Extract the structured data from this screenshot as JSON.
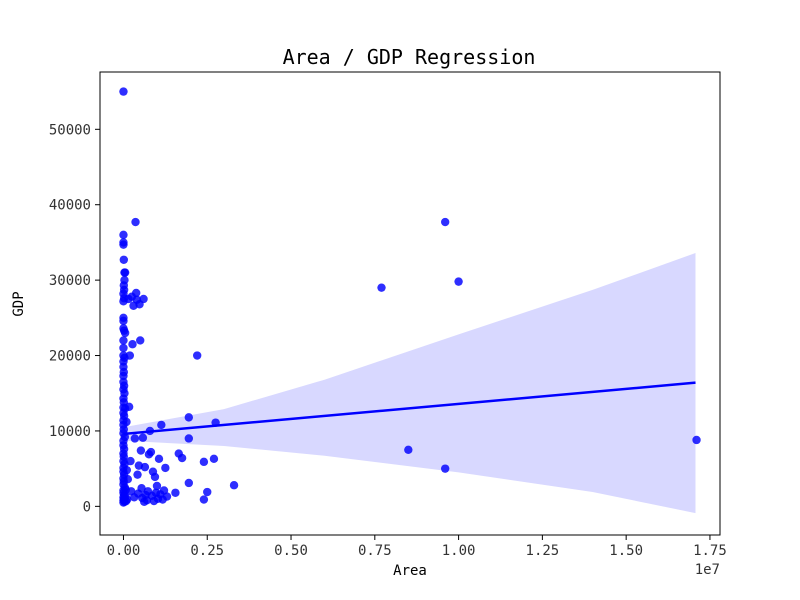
{
  "chart_data": {
    "type": "scatter",
    "title": "Area / GDP Regression",
    "xlabel": "Area",
    "ylabel": "GDP",
    "x_offset_label": "1e7",
    "xlim": [
      -0.07,
      1.78
    ],
    "ylim": [
      -3800,
      57600
    ],
    "x_ticks": [
      0.0,
      0.25,
      0.5,
      0.75,
      1.0,
      1.25,
      1.5,
      1.75
    ],
    "x_tick_labels": [
      "0.00",
      "0.25",
      "0.50",
      "0.75",
      "1.00",
      "1.25",
      "1.50",
      "1.75"
    ],
    "y_ticks": [
      0,
      10000,
      20000,
      30000,
      40000,
      50000
    ],
    "y_tick_labels": [
      "0",
      "10000",
      "20000",
      "30000",
      "40000",
      "50000"
    ],
    "grid": false,
    "colors": {
      "points": "#0000ff",
      "regression_line": "#0000ff",
      "confidence_band": "#d8d8ff"
    },
    "regression_line": {
      "x": [
        0.0,
        1.707
      ],
      "y": [
        9600,
        16400
      ]
    },
    "confidence_band": {
      "x": [
        0.0,
        0.3,
        0.6,
        1.0,
        1.4,
        1.707
      ],
      "lower": [
        8700,
        8000,
        6700,
        4500,
        1900,
        -900
      ],
      "upper": [
        10500,
        12900,
        16800,
        22800,
        28700,
        33600
      ]
    },
    "points": [
      {
        "x": 0.0,
        "y": 55000
      },
      {
        "x": 0.0,
        "y": 36000
      },
      {
        "x": 0.0,
        "y": 35000
      },
      {
        "x": 0.0,
        "y": 34700
      },
      {
        "x": 0.001,
        "y": 32700
      },
      {
        "x": 0.003,
        "y": 31000
      },
      {
        "x": 0.005,
        "y": 31000
      },
      {
        "x": 0.003,
        "y": 30000
      },
      {
        "x": 0.001,
        "y": 29300
      },
      {
        "x": 0.002,
        "y": 28700
      },
      {
        "x": 0.0,
        "y": 28200
      },
      {
        "x": 0.0,
        "y": 27200
      },
      {
        "x": 0.002,
        "y": 27600
      },
      {
        "x": 0.0,
        "y": 25000
      },
      {
        "x": 0.0,
        "y": 24600
      },
      {
        "x": 0.0,
        "y": 23600
      },
      {
        "x": 0.002,
        "y": 23300
      },
      {
        "x": 0.005,
        "y": 23000
      },
      {
        "x": 0.0,
        "y": 22000
      },
      {
        "x": 0.0,
        "y": 21000
      },
      {
        "x": 0.0,
        "y": 20000
      },
      {
        "x": 0.003,
        "y": 19700
      },
      {
        "x": 0.0,
        "y": 19200
      },
      {
        "x": 0.0,
        "y": 18500
      },
      {
        "x": 0.001,
        "y": 17800
      },
      {
        "x": 0.0,
        "y": 17300
      },
      {
        "x": 0.0,
        "y": 16500
      },
      {
        "x": 0.002,
        "y": 16000
      },
      {
        "x": 0.0,
        "y": 15500
      },
      {
        "x": 0.003,
        "y": 15000
      },
      {
        "x": 0.0,
        "y": 14300
      },
      {
        "x": 0.001,
        "y": 13800
      },
      {
        "x": 0.0,
        "y": 13100
      },
      {
        "x": 0.005,
        "y": 13000
      },
      {
        "x": 0.0,
        "y": 12400
      },
      {
        "x": 0.002,
        "y": 12000
      },
      {
        "x": 0.0,
        "y": 11400
      },
      {
        "x": 0.0,
        "y": 10800
      },
      {
        "x": 0.001,
        "y": 10200
      },
      {
        "x": 0.0,
        "y": 9700
      },
      {
        "x": 0.004,
        "y": 9200
      },
      {
        "x": 0.0,
        "y": 8700
      },
      {
        "x": 0.0,
        "y": 8100
      },
      {
        "x": 0.002,
        "y": 7600
      },
      {
        "x": 0.0,
        "y": 7000
      },
      {
        "x": 0.001,
        "y": 6600
      },
      {
        "x": 0.0,
        "y": 6000
      },
      {
        "x": 0.003,
        "y": 5600
      },
      {
        "x": 0.0,
        "y": 5100
      },
      {
        "x": 0.0,
        "y": 4600
      },
      {
        "x": 0.002,
        "y": 4200
      },
      {
        "x": 0.0,
        "y": 3700
      },
      {
        "x": 0.001,
        "y": 3300
      },
      {
        "x": 0.0,
        "y": 2900
      },
      {
        "x": 0.004,
        "y": 2500
      },
      {
        "x": 0.0,
        "y": 2100
      },
      {
        "x": 0.0,
        "y": 1800
      },
      {
        "x": 0.002,
        "y": 1500
      },
      {
        "x": 0.0,
        "y": 1200
      },
      {
        "x": 0.001,
        "y": 1000
      },
      {
        "x": 0.0,
        "y": 800
      },
      {
        "x": 0.003,
        "y": 600
      },
      {
        "x": 0.0,
        "y": 500
      },
      {
        "x": 0.006,
        "y": 1300
      },
      {
        "x": 0.007,
        "y": 2200
      },
      {
        "x": 0.008,
        "y": 700
      },
      {
        "x": 0.009,
        "y": 11200
      },
      {
        "x": 0.01,
        "y": 4800
      },
      {
        "x": 0.011,
        "y": 900
      },
      {
        "x": 0.013,
        "y": 3600
      },
      {
        "x": 0.015,
        "y": 27500
      },
      {
        "x": 0.017,
        "y": 13200
      },
      {
        "x": 0.019,
        "y": 20000
      },
      {
        "x": 0.021,
        "y": 6000
      },
      {
        "x": 0.023,
        "y": 2000
      },
      {
        "x": 0.025,
        "y": 27800
      },
      {
        "x": 0.027,
        "y": 21500
      },
      {
        "x": 0.03,
        "y": 26600
      },
      {
        "x": 0.032,
        "y": 1200
      },
      {
        "x": 0.034,
        "y": 9000
      },
      {
        "x": 0.036,
        "y": 37700
      },
      {
        "x": 0.038,
        "y": 28300
      },
      {
        "x": 0.04,
        "y": 27400
      },
      {
        "x": 0.042,
        "y": 4200
      },
      {
        "x": 0.044,
        "y": 1700
      },
      {
        "x": 0.046,
        "y": 5400
      },
      {
        "x": 0.048,
        "y": 26800
      },
      {
        "x": 0.05,
        "y": 22000
      },
      {
        "x": 0.052,
        "y": 7400
      },
      {
        "x": 0.054,
        "y": 2400
      },
      {
        "x": 0.056,
        "y": 1100
      },
      {
        "x": 0.058,
        "y": 9100
      },
      {
        "x": 0.06,
        "y": 27500
      },
      {
        "x": 0.062,
        "y": 600
      },
      {
        "x": 0.064,
        "y": 5200
      },
      {
        "x": 0.066,
        "y": 1500
      },
      {
        "x": 0.07,
        "y": 800
      },
      {
        "x": 0.073,
        "y": 2000
      },
      {
        "x": 0.076,
        "y": 6900
      },
      {
        "x": 0.079,
        "y": 10000
      },
      {
        "x": 0.082,
        "y": 7200
      },
      {
        "x": 0.085,
        "y": 1400
      },
      {
        "x": 0.088,
        "y": 4600
      },
      {
        "x": 0.091,
        "y": 700
      },
      {
        "x": 0.094,
        "y": 3900
      },
      {
        "x": 0.097,
        "y": 1800
      },
      {
        "x": 0.1,
        "y": 2700
      },
      {
        "x": 0.103,
        "y": 1000
      },
      {
        "x": 0.106,
        "y": 6300
      },
      {
        "x": 0.11,
        "y": 1600
      },
      {
        "x": 0.113,
        "y": 10800
      },
      {
        "x": 0.117,
        "y": 900
      },
      {
        "x": 0.121,
        "y": 2100
      },
      {
        "x": 0.125,
        "y": 5100
      },
      {
        "x": 0.13,
        "y": 1300
      },
      {
        "x": 0.155,
        "y": 1800
      },
      {
        "x": 0.165,
        "y": 7000
      },
      {
        "x": 0.175,
        "y": 6400
      },
      {
        "x": 0.195,
        "y": 11800
      },
      {
        "x": 0.195,
        "y": 9000
      },
      {
        "x": 0.195,
        "y": 3100
      },
      {
        "x": 0.22,
        "y": 20000
      },
      {
        "x": 0.24,
        "y": 900
      },
      {
        "x": 0.24,
        "y": 5900
      },
      {
        "x": 0.25,
        "y": 1900
      },
      {
        "x": 0.275,
        "y": 11100
      },
      {
        "x": 0.27,
        "y": 6300
      },
      {
        "x": 0.33,
        "y": 2800
      },
      {
        "x": 0.77,
        "y": 29000
      },
      {
        "x": 0.85,
        "y": 7500
      },
      {
        "x": 0.96,
        "y": 37700
      },
      {
        "x": 0.96,
        "y": 5000
      },
      {
        "x": 1.0,
        "y": 29800
      },
      {
        "x": 1.71,
        "y": 8800
      }
    ]
  }
}
